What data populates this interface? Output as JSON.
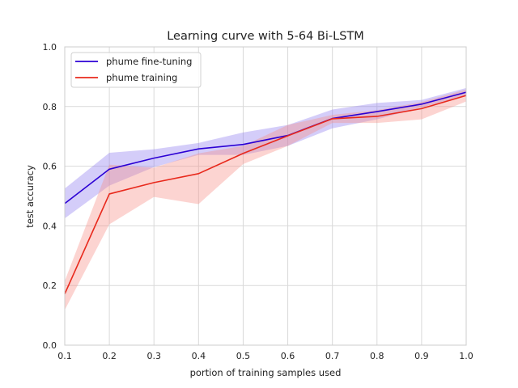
{
  "chart_data": {
    "type": "line",
    "title": "Learning curve with 5-64 Bi-LSTM",
    "xlabel": "portion of training samples used",
    "ylabel": "test accuracy",
    "xlim": [
      0.1,
      1.0
    ],
    "ylim": [
      0.0,
      1.0
    ],
    "x_ticks": [
      "0.1",
      "0.2",
      "0.3",
      "0.4",
      "0.5",
      "0.6",
      "0.7",
      "0.8",
      "0.9",
      "1.0"
    ],
    "y_ticks": [
      "0.0",
      "0.2",
      "0.4",
      "0.6",
      "0.8",
      "1.0"
    ],
    "grid": true,
    "legend_position": "top-left",
    "x": [
      0.1,
      0.2,
      0.3,
      0.4,
      0.5,
      0.6,
      0.7,
      0.8,
      0.9,
      1.0
    ],
    "series": [
      {
        "name": "phume fine-tuning",
        "color": "#2b00d4",
        "band_color": "#8f7cf0",
        "values": [
          0.475,
          0.59,
          0.627,
          0.658,
          0.673,
          0.703,
          0.76,
          0.783,
          0.808,
          0.848
        ],
        "lower": [
          0.425,
          0.535,
          0.597,
          0.638,
          0.638,
          0.668,
          0.727,
          0.757,
          0.797,
          0.838
        ],
        "upper": [
          0.525,
          0.645,
          0.657,
          0.678,
          0.713,
          0.738,
          0.79,
          0.812,
          0.822,
          0.862
        ]
      },
      {
        "name": "phume training",
        "color": "#e8291c",
        "band_color": "#f88f87",
        "values": [
          0.172,
          0.507,
          0.545,
          0.575,
          0.643,
          0.702,
          0.759,
          0.767,
          0.793,
          0.837
        ],
        "lower": [
          0.118,
          0.405,
          0.497,
          0.473,
          0.607,
          0.668,
          0.745,
          0.745,
          0.757,
          0.817
        ],
        "upper": [
          0.215,
          0.605,
          0.595,
          0.643,
          0.668,
          0.738,
          0.772,
          0.788,
          0.815,
          0.857
        ]
      }
    ]
  }
}
